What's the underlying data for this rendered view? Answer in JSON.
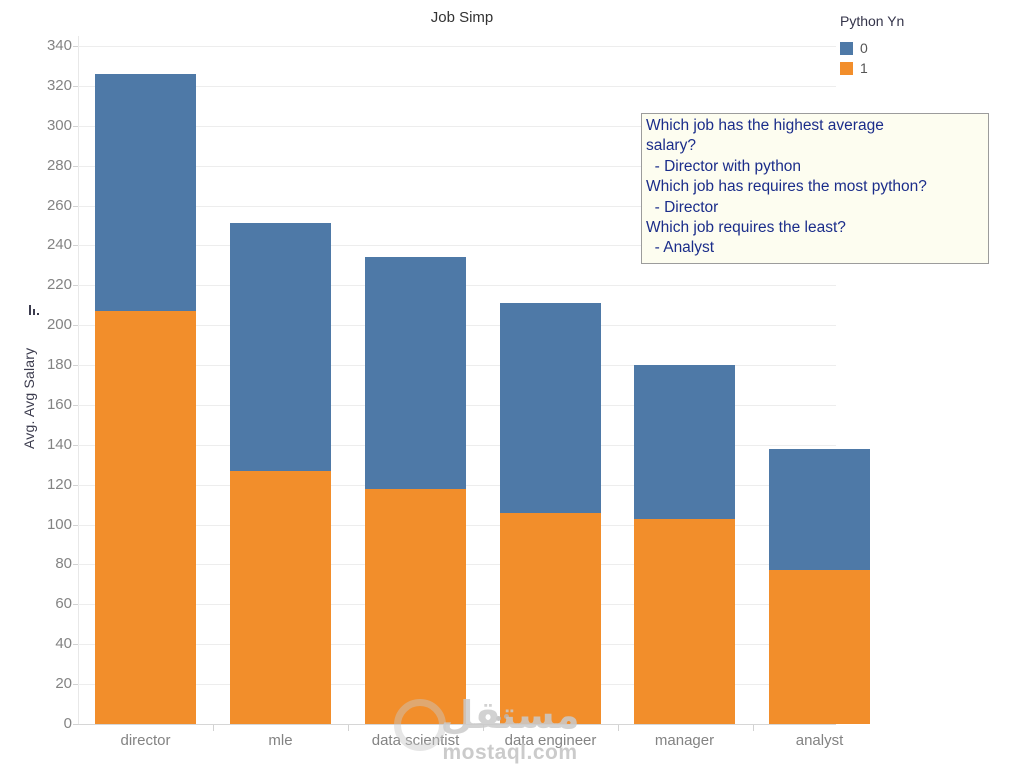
{
  "chart_data": {
    "type": "bar",
    "stacked": true,
    "title": "Job Simp",
    "legend_title": "Python Yn",
    "legend_position": "top-right",
    "categories": [
      "director",
      "mle",
      "data scientist",
      "data engineer",
      "manager",
      "analyst"
    ],
    "series": [
      {
        "name": "0",
        "color": "#4e79a7",
        "values": [
          119,
          124,
          116,
          105,
          77,
          61
        ]
      },
      {
        "name": "1",
        "color": "#f28e2b",
        "values": [
          207,
          127,
          118,
          106,
          103,
          77
        ]
      }
    ],
    "stack_order_bottom_to_top": [
      "1",
      "0"
    ],
    "stacked_totals": [
      326,
      251,
      234,
      211,
      180,
      138
    ],
    "xlabel": "",
    "ylabel": "Avg. Avg Salary",
    "ylim": [
      0,
      340
    ],
    "ytick_step": 20,
    "grid": true,
    "sort_indicator": "descending-bars-icon",
    "annotation": {
      "lines": [
        "Which job has the highest average",
        "salary?",
        "  - Director with python",
        "Which job has requires the most python?",
        "  - Director",
        "Which job requires the least?",
        "  - Analyst"
      ],
      "text_color": "#1b2d8a",
      "background": "#fdfdf0"
    }
  },
  "watermark": {
    "arabic": "مستقل",
    "domain": "mostaql.com"
  }
}
